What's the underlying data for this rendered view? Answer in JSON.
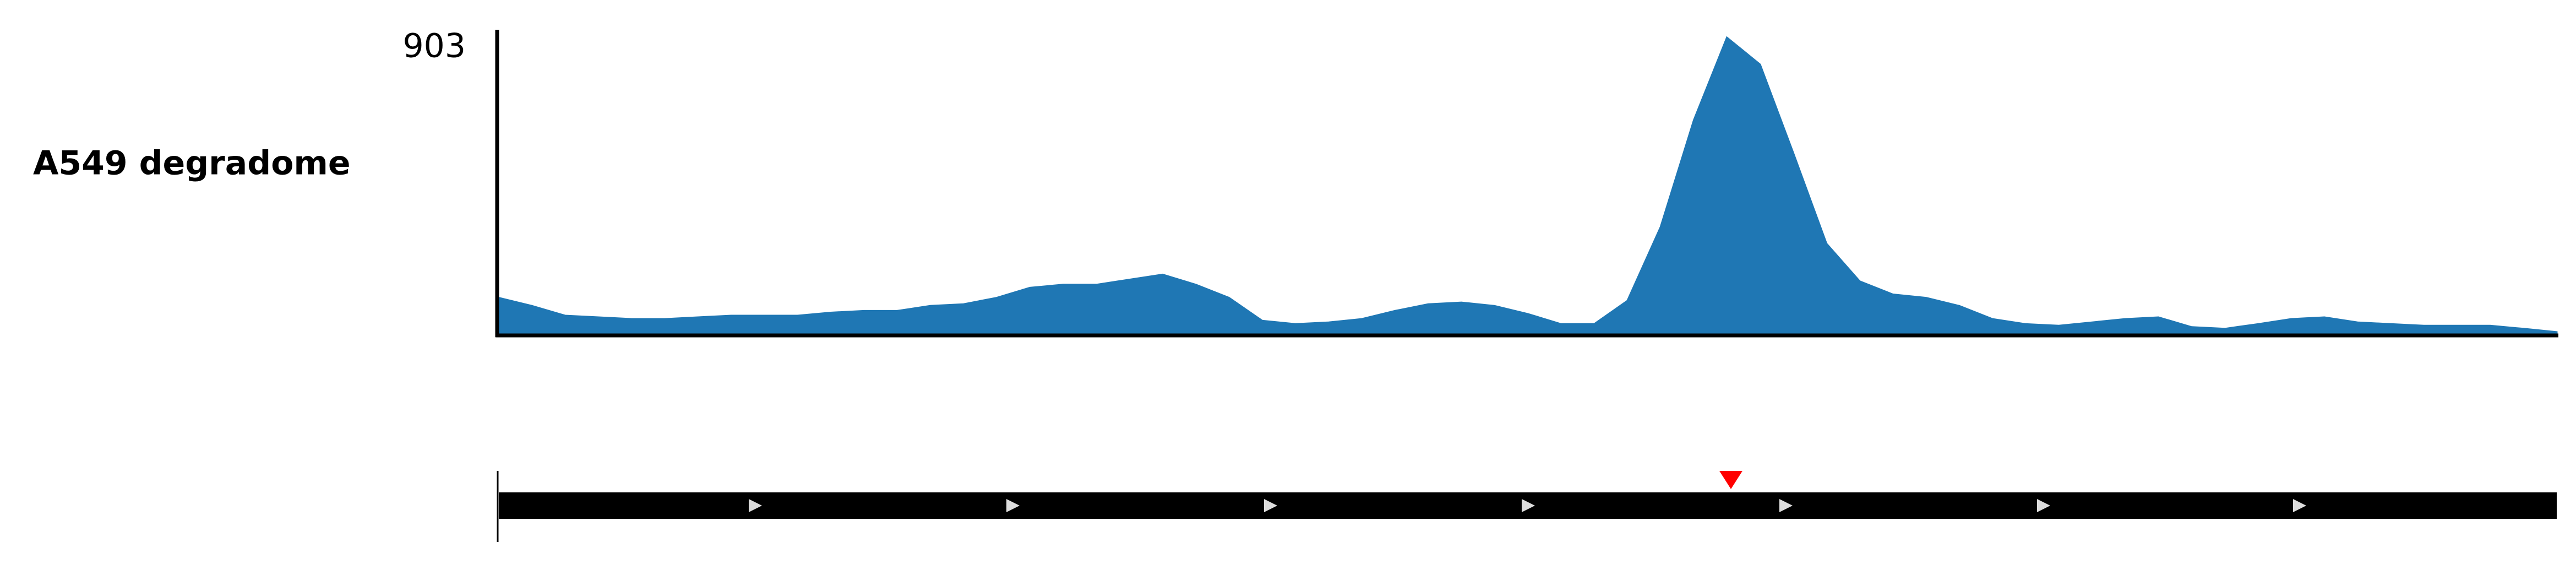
{
  "chart_data": {
    "type": "area",
    "track_label": "A549 degradome",
    "color": "#1f77b4",
    "values": [
      107,
      83,
      54,
      49,
      44,
      44,
      49,
      54,
      54,
      54,
      63,
      68,
      68,
      83,
      88,
      107,
      137,
      146,
      146,
      161,
      176,
      146,
      107,
      39,
      29,
      34,
      44,
      68,
      88,
      93,
      83,
      59,
      29,
      29,
      98,
      317,
      634,
      880,
      800,
      537,
      268,
      156,
      117,
      107,
      83,
      44,
      29,
      24,
      34,
      44,
      49,
      20,
      15,
      29,
      44,
      49,
      34,
      29,
      24,
      24,
      24,
      15,
      5
    ],
    "ylim": [
      0,
      903
    ],
    "yticks": [
      903
    ]
  }
}
